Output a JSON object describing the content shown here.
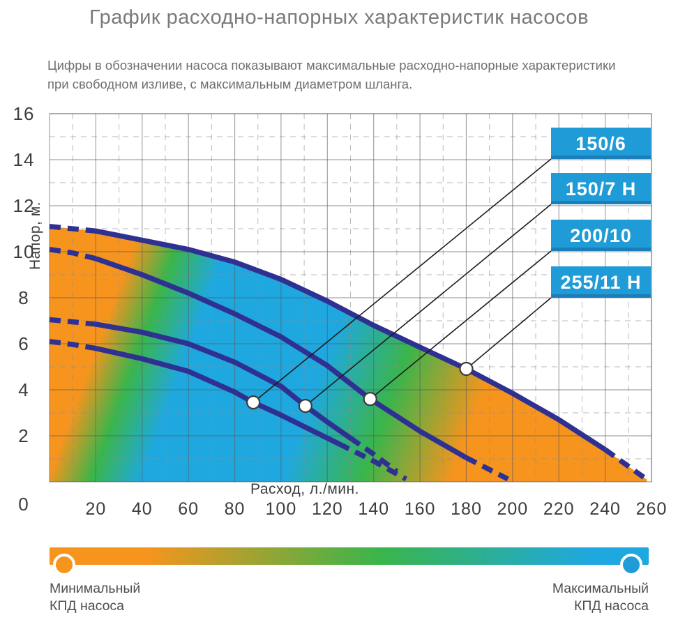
{
  "page": {
    "title": "График расходно-напорных характеристик насосов",
    "subtitle_line1": "Цифры в обозначении насоса показывают максимальные расходно-напорные характеристики",
    "subtitle_line2": "при свободном изливе, с максимальным диаметром шланга."
  },
  "chart_data": {
    "type": "line",
    "xlabel": "Расход, л./мин.",
    "ylabel": "Напор, м.",
    "xlim": [
      0,
      260
    ],
    "ylim": [
      0,
      16
    ],
    "x_major_ticks": [
      20,
      40,
      60,
      80,
      100,
      120,
      140,
      160,
      180,
      200,
      220,
      240,
      260
    ],
    "y_major_ticks": [
      0,
      2,
      4,
      6,
      8,
      10,
      12,
      14,
      16
    ],
    "x_minor_step": 10,
    "y_minor_step": 1,
    "grid": {
      "major": "solid",
      "minor": "dashed",
      "on": true
    },
    "series": [
      {
        "label": "255/11 Н",
        "max_flow_lpm": 255,
        "max_head_m": 11,
        "points": [
          [
            0,
            11.1
          ],
          [
            10,
            11.0
          ],
          [
            20,
            10.9
          ],
          [
            40,
            10.5
          ],
          [
            60,
            10.1
          ],
          [
            80,
            9.55
          ],
          [
            100,
            8.8
          ],
          [
            120,
            7.85
          ],
          [
            140,
            6.8
          ],
          [
            160,
            5.85
          ],
          [
            180,
            4.91
          ],
          [
            200,
            3.85
          ],
          [
            220,
            2.7
          ],
          [
            240,
            1.4
          ],
          [
            258,
            0.1
          ]
        ],
        "dash_until": 21,
        "dash_from": 239,
        "marker": [
          180,
          4.91
        ]
      },
      {
        "label": "200/10",
        "max_flow_lpm": 200,
        "max_head_m": 10,
        "points": [
          [
            0,
            10.1
          ],
          [
            10,
            9.95
          ],
          [
            20,
            9.7
          ],
          [
            40,
            9.0
          ],
          [
            60,
            8.2
          ],
          [
            80,
            7.3
          ],
          [
            100,
            6.3
          ],
          [
            120,
            5.05
          ],
          [
            138.5,
            3.6
          ],
          [
            160,
            2.2
          ],
          [
            180,
            1.05
          ],
          [
            198,
            0.12
          ]
        ],
        "dash_until": 21,
        "dash_from": 179,
        "marker": [
          138.5,
          3.6
        ]
      },
      {
        "label": "150/7 Н",
        "max_flow_lpm": 150,
        "max_head_m": 7,
        "points": [
          [
            0,
            7.05
          ],
          [
            10,
            6.95
          ],
          [
            20,
            6.85
          ],
          [
            40,
            6.5
          ],
          [
            60,
            6.0
          ],
          [
            80,
            5.2
          ],
          [
            100,
            4.15
          ],
          [
            110.5,
            3.3
          ],
          [
            120,
            2.6
          ],
          [
            130,
            1.9
          ],
          [
            140,
            1.2
          ],
          [
            150,
            0.45
          ]
        ],
        "dash_until": 21,
        "dash_from": 129,
        "marker": [
          110.5,
          3.3
        ]
      },
      {
        "label": "150/6",
        "max_flow_lpm": 150,
        "max_head_m": 6,
        "points": [
          [
            0,
            6.1
          ],
          [
            10,
            5.97
          ],
          [
            20,
            5.8
          ],
          [
            40,
            5.35
          ],
          [
            60,
            4.8
          ],
          [
            80,
            3.9
          ],
          [
            88,
            3.45
          ],
          [
            100,
            2.9
          ],
          [
            120,
            1.9
          ],
          [
            125,
            1.65
          ],
          [
            140,
            0.9
          ],
          [
            154,
            0.12
          ]
        ],
        "dash_until": 21,
        "dash_from": 124,
        "marker": [
          88,
          3.45
        ]
      }
    ],
    "callout_labels": [
      "150/6",
      "150/7 Н",
      "200/10",
      "255/11 Н"
    ],
    "efficiency_gradient": {
      "stops": [
        [
          0,
          "#F7941E"
        ],
        [
          0.115,
          "#F7941E"
        ],
        [
          0.18,
          "#3AB54A"
        ],
        [
          0.255,
          "#1FA8DF"
        ],
        [
          0.465,
          "#1FA8DF"
        ],
        [
          0.585,
          "#3AB54A"
        ],
        [
          0.72,
          "#F7941E"
        ],
        [
          1,
          "#F7941E"
        ]
      ]
    }
  },
  "legend": {
    "min_line1": "Минимальный",
    "min_line2": "КПД насоса",
    "max_line1": "Максимальный",
    "max_line2": "КПД насоса"
  },
  "colors": {
    "orange": "#F7941E",
    "green": "#3AB54A",
    "blue": "#1FA8DF",
    "curve_navy": "#2E3192",
    "box_blue": "#1F9CD7",
    "box_blue_dark": "#1B7EB8",
    "callout_line": "#1c1c1c",
    "grid_major": "rgba(90,90,90,0.55)",
    "grid_minor": "rgba(140,140,140,0.6)",
    "tick_text": "#3d3d3d",
    "title_gray": "#7a7a7a"
  }
}
